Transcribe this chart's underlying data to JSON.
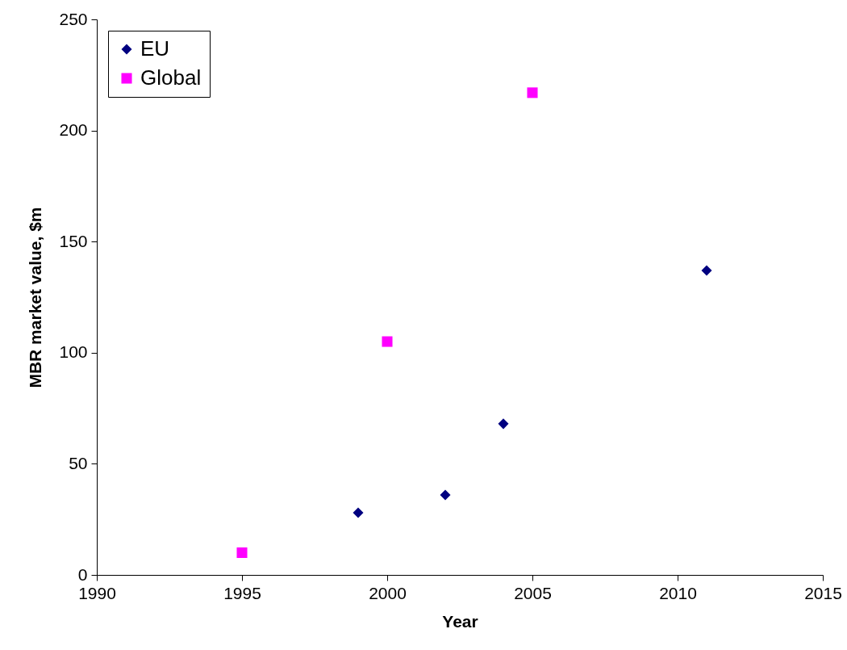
{
  "chart_data": {
    "type": "scatter",
    "xlabel": "Year",
    "ylabel": "MBR market value, $m",
    "series": [
      {
        "name": "EU",
        "color": "#000080",
        "marker": "diamond",
        "x": [
          1999,
          2002,
          2004,
          2011
        ],
        "values": [
          28,
          36,
          68,
          137
        ]
      },
      {
        "name": "Global",
        "color": "#ff00ff",
        "marker": "square",
        "x": [
          1995,
          2000,
          2005
        ],
        "values": [
          10,
          105,
          217
        ]
      }
    ],
    "xlim": [
      1990,
      2015
    ],
    "xticks": [
      1990,
      1995,
      2000,
      2005,
      2010,
      2015
    ],
    "ylim": [
      0,
      250
    ],
    "yticks": [
      0,
      50,
      100,
      150,
      200,
      250
    ],
    "grid": false,
    "legend": "top left"
  }
}
